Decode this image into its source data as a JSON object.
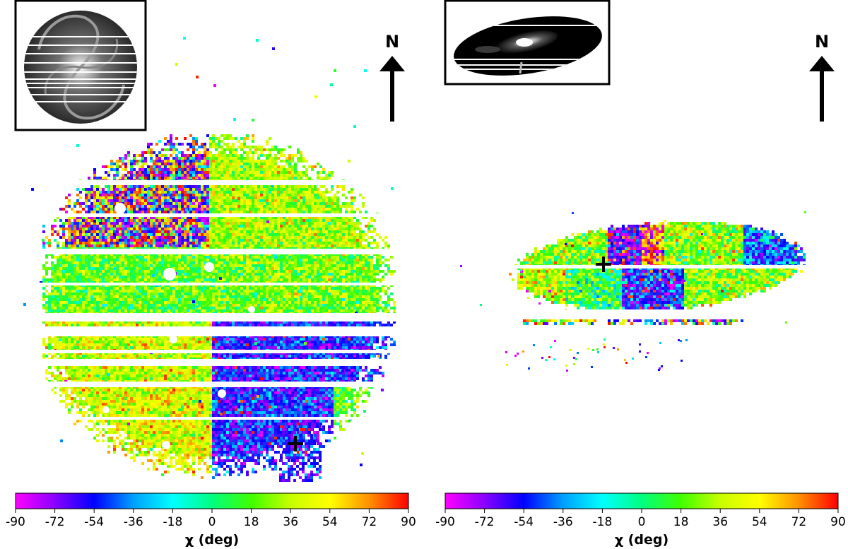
{
  "chart_data": [
    {
      "type": "heatmap",
      "panel": "left",
      "description_variable": "polarization angle map",
      "north_label": "N",
      "inset_shape": "circle",
      "colorbar": {
        "label": "χ (deg)",
        "range": [
          -90,
          90
        ],
        "ticks": [
          -90,
          -72,
          -54,
          -36,
          -18,
          0,
          18,
          36,
          54,
          72,
          90
        ],
        "tick_labels": [
          "-90",
          "-72",
          "-54",
          "-36",
          "-18",
          "0",
          "18",
          "36",
          "54",
          "72",
          "90"
        ],
        "colors": [
          "#ff00ff",
          "#8a00ff",
          "#0000ff",
          "#00a0ff",
          "#00ffff",
          "#00ff80",
          "#40ff00",
          "#c8ff00",
          "#ffff00",
          "#ff9000",
          "#ff0000"
        ]
      }
    },
    {
      "type": "heatmap",
      "panel": "right",
      "description_variable": "polarization angle map",
      "north_label": "N",
      "inset_shape": "ellipse",
      "colorbar": {
        "label": "χ (deg)",
        "range": [
          -90,
          90
        ],
        "ticks": [
          -90,
          -72,
          -54,
          -36,
          -18,
          0,
          18,
          36,
          54,
          72,
          90
        ],
        "tick_labels": [
          "-90",
          "-72",
          "-54",
          "-36",
          "-18",
          "0",
          "18",
          "36",
          "54",
          "72",
          "90"
        ],
        "colors": [
          "#ff00ff",
          "#8a00ff",
          "#0000ff",
          "#00a0ff",
          "#00ffff",
          "#00ff80",
          "#40ff00",
          "#c8ff00",
          "#ffff00",
          "#ff9000",
          "#ff0000"
        ]
      }
    }
  ]
}
